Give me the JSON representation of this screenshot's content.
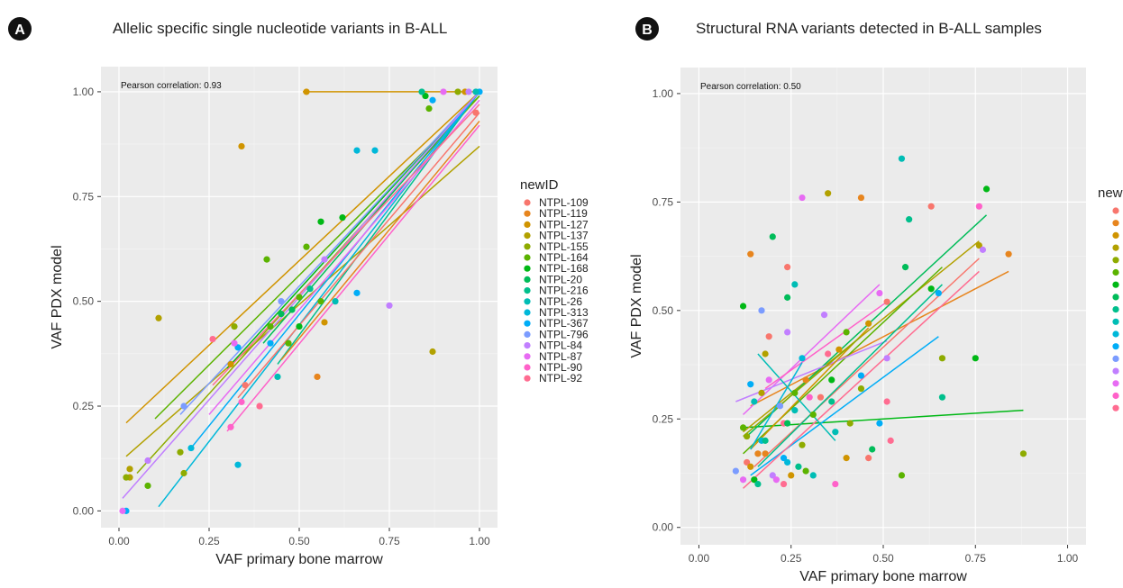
{
  "legend_title": "newID",
  "legend_items": [
    "NTPL-109",
    "NTPL-119",
    "NTPL-127",
    "NTPL-137",
    "NTPL-155",
    "NTPL-164",
    "NTPL-168",
    "NTPL-20",
    "NTPL-216",
    "NTPL-26",
    "NTPL-313",
    "NTPL-367",
    "NTPL-796",
    "NTPL-84",
    "NTPL-87",
    "NTPL-90",
    "NTPL-92"
  ],
  "colors": [
    "#F8766D",
    "#E7851E",
    "#D09400",
    "#B2A100",
    "#8EAB00",
    "#5BB300",
    "#00B815",
    "#00BC59",
    "#00BF8C",
    "#00BDB5",
    "#00B8D9",
    "#00ADF7",
    "#7B9CFF",
    "#C17FFF",
    "#E76BF3",
    "#FF61C9",
    "#FF6C91"
  ],
  "chart_data": [
    {
      "type": "scatter",
      "panel_label": "A",
      "title": "Allelic specific single nucleotide variants in B-ALL",
      "xlabel": "VAF primary bone marrow",
      "ylabel": "VAF PDX model",
      "annotation": "Pearson correlation: 0.93",
      "xlim": [
        -0.05,
        1.05
      ],
      "ylim": [
        -0.04,
        1.06
      ],
      "xticks": [
        "0.00",
        "0.25",
        "0.50",
        "0.75",
        "1.00"
      ],
      "yticks": [
        "0.00",
        "0.25",
        "0.50",
        "0.75",
        "1.00"
      ],
      "grid": true,
      "legend": "right",
      "points": [
        {
          "x": 0.34,
          "y": 0.87,
          "s": 2
        },
        {
          "x": 0.52,
          "y": 1.0,
          "s": 2
        },
        {
          "x": 0.57,
          "y": 0.45,
          "s": 2
        },
        {
          "x": 0.55,
          "y": 0.32,
          "s": 1
        },
        {
          "x": 0.31,
          "y": 0.35,
          "s": 2
        },
        {
          "x": 0.99,
          "y": 0.95,
          "s": 0
        },
        {
          "x": 0.87,
          "y": 0.38,
          "s": 3
        },
        {
          "x": 0.11,
          "y": 0.46,
          "s": 3
        },
        {
          "x": 0.03,
          "y": 0.08,
          "s": 3
        },
        {
          "x": 0.03,
          "y": 0.1,
          "s": 3
        },
        {
          "x": 0.02,
          "y": 0.08,
          "s": 4
        },
        {
          "x": 0.08,
          "y": 0.06,
          "s": 5
        },
        {
          "x": 0.17,
          "y": 0.14,
          "s": 4
        },
        {
          "x": 0.18,
          "y": 0.09,
          "s": 4
        },
        {
          "x": 0.32,
          "y": 0.44,
          "s": 4
        },
        {
          "x": 0.41,
          "y": 0.6,
          "s": 5
        },
        {
          "x": 0.47,
          "y": 0.4,
          "s": 5
        },
        {
          "x": 0.42,
          "y": 0.44,
          "s": 5
        },
        {
          "x": 0.5,
          "y": 0.51,
          "s": 5
        },
        {
          "x": 0.5,
          "y": 0.44,
          "s": 6
        },
        {
          "x": 0.52,
          "y": 0.63,
          "s": 5
        },
        {
          "x": 0.56,
          "y": 0.5,
          "s": 5
        },
        {
          "x": 0.56,
          "y": 0.69,
          "s": 6
        },
        {
          "x": 0.62,
          "y": 0.7,
          "s": 6
        },
        {
          "x": 0.86,
          "y": 0.96,
          "s": 5
        },
        {
          "x": 0.85,
          "y": 0.99,
          "s": 6
        },
        {
          "x": 0.45,
          "y": 0.47,
          "s": 7
        },
        {
          "x": 0.48,
          "y": 0.48,
          "s": 7
        },
        {
          "x": 0.53,
          "y": 0.53,
          "s": 8
        },
        {
          "x": 0.44,
          "y": 0.32,
          "s": 9
        },
        {
          "x": 0.6,
          "y": 0.5,
          "s": 9
        },
        {
          "x": 0.84,
          "y": 1.0,
          "s": 8
        },
        {
          "x": 0.2,
          "y": 0.15,
          "s": 10
        },
        {
          "x": 0.33,
          "y": 0.11,
          "s": 10
        },
        {
          "x": 0.66,
          "y": 0.86,
          "s": 10
        },
        {
          "x": 0.71,
          "y": 0.86,
          "s": 10
        },
        {
          "x": 0.66,
          "y": 0.52,
          "s": 11
        },
        {
          "x": 0.42,
          "y": 0.4,
          "s": 11
        },
        {
          "x": 0.02,
          "y": 0.0,
          "s": 11
        },
        {
          "x": 0.33,
          "y": 0.39,
          "s": 11
        },
        {
          "x": 0.87,
          "y": 0.98,
          "s": 11
        },
        {
          "x": 1.0,
          "y": 1.0,
          "s": 11
        },
        {
          "x": 0.18,
          "y": 0.25,
          "s": 12
        },
        {
          "x": 0.45,
          "y": 0.5,
          "s": 12
        },
        {
          "x": 0.75,
          "y": 0.49,
          "s": 13
        },
        {
          "x": 0.57,
          "y": 0.6,
          "s": 13
        },
        {
          "x": 0.08,
          "y": 0.12,
          "s": 13
        },
        {
          "x": 0.01,
          "y": 0.0,
          "s": 14
        },
        {
          "x": 0.32,
          "y": 0.4,
          "s": 14
        },
        {
          "x": 0.9,
          "y": 1.0,
          "s": 14
        },
        {
          "x": 0.31,
          "y": 0.2,
          "s": 15
        },
        {
          "x": 0.34,
          "y": 0.26,
          "s": 15
        },
        {
          "x": 0.39,
          "y": 0.25,
          "s": 16
        },
        {
          "x": 0.26,
          "y": 0.41,
          "s": 16
        },
        {
          "x": 0.35,
          "y": 0.3,
          "s": 0
        },
        {
          "x": 0.96,
          "y": 1.0,
          "s": 2
        },
        {
          "x": 0.94,
          "y": 1.0,
          "s": 4
        },
        {
          "x": 0.99,
          "y": 1.0,
          "s": 9
        },
        {
          "x": 0.97,
          "y": 1.0,
          "s": 13
        }
      ],
      "lines": [
        {
          "s": 2,
          "x1": 0.51,
          "y1": 1.0,
          "x2": 1.0,
          "y2": 1.0
        },
        {
          "s": 2,
          "x1": 0.02,
          "y1": 0.21,
          "x2": 1.0,
          "y2": 1.0
        },
        {
          "s": 3,
          "x1": 0.02,
          "y1": 0.13,
          "x2": 1.0,
          "y2": 0.87
        },
        {
          "s": 4,
          "x1": 0.05,
          "y1": 0.09,
          "x2": 1.0,
          "y2": 0.99
        },
        {
          "s": 5,
          "x1": 0.1,
          "y1": 0.22,
          "x2": 1.0,
          "y2": 0.99
        },
        {
          "s": 6,
          "x1": 0.3,
          "y1": 0.34,
          "x2": 1.0,
          "y2": 1.0
        },
        {
          "s": 7,
          "x1": 0.4,
          "y1": 0.4,
          "x2": 1.0,
          "y2": 1.0
        },
        {
          "s": 8,
          "x1": 0.44,
          "y1": 0.35,
          "x2": 1.0,
          "y2": 1.0
        },
        {
          "s": 10,
          "x1": 0.11,
          "y1": 0.01,
          "x2": 1.0,
          "y2": 1.0
        },
        {
          "s": 11,
          "x1": 0.2,
          "y1": 0.15,
          "x2": 1.0,
          "y2": 1.0
        },
        {
          "s": 12,
          "x1": 0.17,
          "y1": 0.23,
          "x2": 1.0,
          "y2": 1.0
        },
        {
          "s": 13,
          "x1": 0.01,
          "y1": 0.03,
          "x2": 1.0,
          "y2": 1.0
        },
        {
          "s": 14,
          "x1": 0.25,
          "y1": 0.23,
          "x2": 1.0,
          "y2": 0.98
        },
        {
          "s": 15,
          "x1": 0.3,
          "y1": 0.19,
          "x2": 1.0,
          "y2": 0.92
        },
        {
          "s": 16,
          "x1": 0.26,
          "y1": 0.3,
          "x2": 1.0,
          "y2": 0.97
        },
        {
          "s": 0,
          "x1": 0.33,
          "y1": 0.27,
          "x2": 1.0,
          "y2": 0.95
        },
        {
          "s": 1,
          "x1": 0.45,
          "y1": 0.36,
          "x2": 1.0,
          "y2": 0.93
        }
      ]
    },
    {
      "type": "scatter",
      "panel_label": "B",
      "title": "Structural RNA variants detected in B-ALL samples",
      "xlabel": "VAF primary bone marrow",
      "ylabel": "VAF PDX model",
      "annotation": "Pearson correlation: 0.50",
      "xlim": [
        -0.05,
        1.05
      ],
      "ylim": [
        -0.04,
        1.06
      ],
      "xticks": [
        "0.00",
        "0.25",
        "0.50",
        "0.75",
        "1.00"
      ],
      "yticks": [
        "0.00",
        "0.25",
        "0.50",
        "0.75",
        "1.00"
      ],
      "grid": true,
      "legend": "right",
      "points": [
        {
          "x": 0.55,
          "y": 0.85,
          "s": 9
        },
        {
          "x": 0.78,
          "y": 0.78,
          "s": 6
        },
        {
          "x": 0.28,
          "y": 0.76,
          "s": 14
        },
        {
          "x": 0.35,
          "y": 0.77,
          "s": 3
        },
        {
          "x": 0.44,
          "y": 0.76,
          "s": 1
        },
        {
          "x": 0.57,
          "y": 0.71,
          "s": 8
        },
        {
          "x": 0.63,
          "y": 0.74,
          "s": 0
        },
        {
          "x": 0.76,
          "y": 0.74,
          "s": 15
        },
        {
          "x": 0.2,
          "y": 0.67,
          "s": 7
        },
        {
          "x": 0.14,
          "y": 0.63,
          "s": 1
        },
        {
          "x": 0.24,
          "y": 0.6,
          "s": 0
        },
        {
          "x": 0.26,
          "y": 0.56,
          "s": 9
        },
        {
          "x": 0.56,
          "y": 0.6,
          "s": 7
        },
        {
          "x": 0.76,
          "y": 0.65,
          "s": 3
        },
        {
          "x": 0.77,
          "y": 0.64,
          "s": 13
        },
        {
          "x": 0.84,
          "y": 0.63,
          "s": 1
        },
        {
          "x": 0.12,
          "y": 0.51,
          "s": 6
        },
        {
          "x": 0.17,
          "y": 0.5,
          "s": 12
        },
        {
          "x": 0.24,
          "y": 0.53,
          "s": 7
        },
        {
          "x": 0.34,
          "y": 0.49,
          "s": 13
        },
        {
          "x": 0.49,
          "y": 0.54,
          "s": 14
        },
        {
          "x": 0.51,
          "y": 0.52,
          "s": 0
        },
        {
          "x": 0.63,
          "y": 0.55,
          "s": 6
        },
        {
          "x": 0.65,
          "y": 0.54,
          "s": 11
        },
        {
          "x": 0.19,
          "y": 0.44,
          "s": 0
        },
        {
          "x": 0.18,
          "y": 0.4,
          "s": 3
        },
        {
          "x": 0.24,
          "y": 0.45,
          "s": 13
        },
        {
          "x": 0.4,
          "y": 0.45,
          "s": 5
        },
        {
          "x": 0.46,
          "y": 0.47,
          "s": 2
        },
        {
          "x": 0.14,
          "y": 0.33,
          "s": 11
        },
        {
          "x": 0.28,
          "y": 0.39,
          "s": 10
        },
        {
          "x": 0.35,
          "y": 0.4,
          "s": 16
        },
        {
          "x": 0.38,
          "y": 0.41,
          "s": 2
        },
        {
          "x": 0.44,
          "y": 0.35,
          "s": 11
        },
        {
          "x": 0.44,
          "y": 0.32,
          "s": 4
        },
        {
          "x": 0.51,
          "y": 0.39,
          "s": 13
        },
        {
          "x": 0.66,
          "y": 0.39,
          "s": 4
        },
        {
          "x": 0.75,
          "y": 0.39,
          "s": 6
        },
        {
          "x": 0.15,
          "y": 0.29,
          "s": 9
        },
        {
          "x": 0.17,
          "y": 0.31,
          "s": 3
        },
        {
          "x": 0.19,
          "y": 0.34,
          "s": 14
        },
        {
          "x": 0.22,
          "y": 0.28,
          "s": 12
        },
        {
          "x": 0.26,
          "y": 0.31,
          "s": 5
        },
        {
          "x": 0.29,
          "y": 0.34,
          "s": 1
        },
        {
          "x": 0.3,
          "y": 0.3,
          "s": 15
        },
        {
          "x": 0.33,
          "y": 0.3,
          "s": 0
        },
        {
          "x": 0.36,
          "y": 0.29,
          "s": 8
        },
        {
          "x": 0.66,
          "y": 0.3,
          "s": 8
        },
        {
          "x": 0.51,
          "y": 0.29,
          "s": 16
        },
        {
          "x": 0.12,
          "y": 0.23,
          "s": 5
        },
        {
          "x": 0.13,
          "y": 0.21,
          "s": 4
        },
        {
          "x": 0.17,
          "y": 0.2,
          "s": 10
        },
        {
          "x": 0.23,
          "y": 0.24,
          "s": 16
        },
        {
          "x": 0.24,
          "y": 0.24,
          "s": 7
        },
        {
          "x": 0.26,
          "y": 0.27,
          "s": 9
        },
        {
          "x": 0.31,
          "y": 0.26,
          "s": 5
        },
        {
          "x": 0.37,
          "y": 0.22,
          "s": 9
        },
        {
          "x": 0.41,
          "y": 0.24,
          "s": 4
        },
        {
          "x": 0.49,
          "y": 0.24,
          "s": 11
        },
        {
          "x": 0.52,
          "y": 0.2,
          "s": 16
        },
        {
          "x": 0.13,
          "y": 0.15,
          "s": 0
        },
        {
          "x": 0.15,
          "y": 0.11,
          "s": 6
        },
        {
          "x": 0.16,
          "y": 0.1,
          "s": 8
        },
        {
          "x": 0.18,
          "y": 0.17,
          "s": 1
        },
        {
          "x": 0.2,
          "y": 0.12,
          "s": 13
        },
        {
          "x": 0.21,
          "y": 0.11,
          "s": 14
        },
        {
          "x": 0.23,
          "y": 0.1,
          "s": 16
        },
        {
          "x": 0.23,
          "y": 0.16,
          "s": 11
        },
        {
          "x": 0.25,
          "y": 0.12,
          "s": 2
        },
        {
          "x": 0.27,
          "y": 0.14,
          "s": 8
        },
        {
          "x": 0.28,
          "y": 0.19,
          "s": 4
        },
        {
          "x": 0.29,
          "y": 0.13,
          "s": 5
        },
        {
          "x": 0.31,
          "y": 0.12,
          "s": 9
        },
        {
          "x": 0.37,
          "y": 0.1,
          "s": 15
        },
        {
          "x": 0.4,
          "y": 0.16,
          "s": 2
        },
        {
          "x": 0.46,
          "y": 0.16,
          "s": 0
        },
        {
          "x": 0.47,
          "y": 0.18,
          "s": 7
        },
        {
          "x": 0.55,
          "y": 0.12,
          "s": 5
        },
        {
          "x": 0.88,
          "y": 0.17,
          "s": 4
        },
        {
          "x": 0.1,
          "y": 0.13,
          "s": 12
        },
        {
          "x": 0.12,
          "y": 0.11,
          "s": 14
        },
        {
          "x": 0.14,
          "y": 0.14,
          "s": 2
        },
        {
          "x": 0.16,
          "y": 0.17,
          "s": 1
        },
        {
          "x": 0.18,
          "y": 0.2,
          "s": 8
        },
        {
          "x": 0.24,
          "y": 0.15,
          "s": 10
        },
        {
          "x": 0.36,
          "y": 0.34,
          "s": 6
        }
      ],
      "lines": [
        {
          "s": 6,
          "x1": 0.12,
          "y1": 0.23,
          "x2": 0.88,
          "y2": 0.27
        },
        {
          "s": 1,
          "x1": 0.14,
          "y1": 0.28,
          "x2": 0.84,
          "y2": 0.59
        },
        {
          "s": 3,
          "x1": 0.12,
          "y1": 0.22,
          "x2": 0.76,
          "y2": 0.66
        },
        {
          "s": 7,
          "x1": 0.13,
          "y1": 0.21,
          "x2": 0.78,
          "y2": 0.72
        },
        {
          "s": 5,
          "x1": 0.12,
          "y1": 0.17,
          "x2": 0.66,
          "y2": 0.6
        },
        {
          "s": 14,
          "x1": 0.12,
          "y1": 0.26,
          "x2": 0.49,
          "y2": 0.56
        },
        {
          "s": 13,
          "x1": 0.1,
          "y1": 0.29,
          "x2": 0.51,
          "y2": 0.43
        },
        {
          "s": 11,
          "x1": 0.14,
          "y1": 0.12,
          "x2": 0.65,
          "y2": 0.44
        },
        {
          "s": 16,
          "x1": 0.12,
          "y1": 0.09,
          "x2": 0.76,
          "y2": 0.59
        },
        {
          "s": 0,
          "x1": 0.15,
          "y1": 0.14,
          "x2": 0.76,
          "y2": 0.62
        },
        {
          "s": 8,
          "x1": 0.16,
          "y1": 0.14,
          "x2": 0.66,
          "y2": 0.56
        },
        {
          "s": 2,
          "x1": 0.14,
          "y1": 0.18,
          "x2": 0.46,
          "y2": 0.46
        },
        {
          "s": 4,
          "x1": 0.12,
          "y1": 0.21,
          "x2": 0.44,
          "y2": 0.44
        },
        {
          "s": 9,
          "x1": 0.16,
          "y1": 0.4,
          "x2": 0.37,
          "y2": 0.2
        },
        {
          "s": 15,
          "x1": 0.18,
          "y1": 0.32,
          "x2": 0.51,
          "y2": 0.52
        },
        {
          "s": 10,
          "x1": 0.14,
          "y1": 0.18,
          "x2": 0.28,
          "y2": 0.38
        }
      ]
    }
  ]
}
